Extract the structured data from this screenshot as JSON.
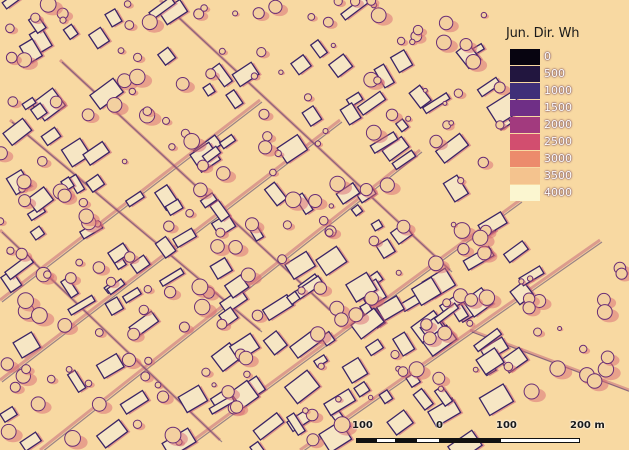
{
  "legend": {
    "title": "Jun. Dir. Wh",
    "entries": [
      {
        "label": "0",
        "color": "#070410"
      },
      {
        "label": "500",
        "color": "#22163f"
      },
      {
        "label": "1000",
        "color": "#3f2f78"
      },
      {
        "label": "1500",
        "color": "#6f2f86"
      },
      {
        "label": "2000",
        "color": "#a23a7e"
      },
      {
        "label": "2500",
        "color": "#d24e6f"
      },
      {
        "label": "3000",
        "color": "#ec8b6c"
      },
      {
        "label": "3500",
        "color": "#f4c38e"
      },
      {
        "label": "4000",
        "color": "#fbf6d0"
      }
    ]
  },
  "scalebar": {
    "labels": [
      "100",
      "0",
      "100",
      "200 m"
    ]
  },
  "map": {
    "background_color": "#f8d9a2"
  }
}
